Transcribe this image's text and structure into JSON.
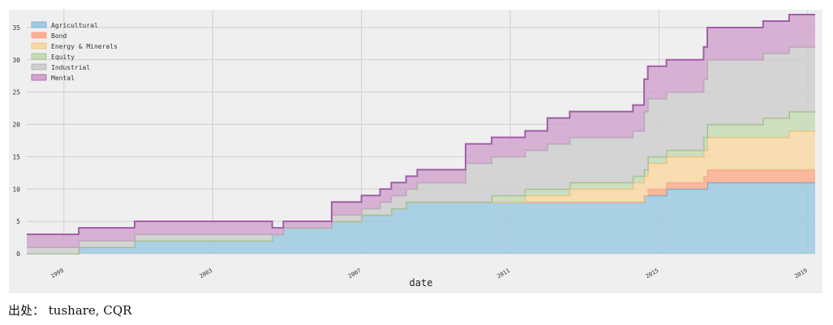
{
  "chart_data": {
    "type": "area",
    "stacked": true,
    "title": "",
    "xlabel": "date",
    "ylabel": "",
    "xlim": [
      1998.0,
      2019.2
    ],
    "ylim": [
      0,
      37
    ],
    "yticks": [
      0,
      5,
      10,
      15,
      20,
      25,
      30,
      35
    ],
    "xticks": [
      1999,
      2003,
      2007,
      2011,
      2015,
      2019
    ],
    "xtick_labels": [
      "1999",
      "2003",
      "2007",
      "2011",
      "2015",
      "2019"
    ],
    "grid": true,
    "legend_position": "top-left",
    "series": [
      {
        "name": "Agricultural",
        "color": "#9ecae1",
        "edge": "#6baed6",
        "points": [
          [
            1998.0,
            0
          ],
          [
            1999.4,
            1
          ],
          [
            2000.9,
            2
          ],
          [
            2004.6,
            3
          ],
          [
            2004.9,
            4
          ],
          [
            2006.2,
            5
          ],
          [
            2007.0,
            6
          ],
          [
            2007.8,
            7
          ],
          [
            2008.2,
            8
          ],
          [
            2014.6,
            9
          ],
          [
            2015.2,
            10
          ],
          [
            2016.3,
            11
          ],
          [
            2019.2,
            11
          ]
        ]
      },
      {
        "name": "Bond",
        "color": "#fcae91",
        "edge": "#f4a582",
        "points": [
          [
            1998.0,
            0
          ],
          [
            2014.7,
            1
          ],
          [
            2016.2,
            2
          ],
          [
            2019.2,
            2
          ]
        ]
      },
      {
        "name": "Energy & Minerals",
        "color": "#f8d9a6",
        "edge": "#f2c078",
        "points": [
          [
            1998.0,
            0
          ],
          [
            2011.4,
            1
          ],
          [
            2012.6,
            2
          ],
          [
            2014.3,
            3
          ],
          [
            2014.7,
            4
          ],
          [
            2016.3,
            5
          ],
          [
            2018.5,
            6
          ],
          [
            2019.2,
            6
          ]
        ]
      },
      {
        "name": "Equity",
        "color": "#c7dcb6",
        "edge": "#9bbf85",
        "points": [
          [
            1998.0,
            0
          ],
          [
            2010.5,
            1
          ],
          [
            2016.2,
            2
          ],
          [
            2017.8,
            3
          ],
          [
            2019.2,
            3
          ]
        ]
      },
      {
        "name": "Industrial",
        "color": "#cfcfcf",
        "edge": "#b0b0b0",
        "points": [
          [
            1998.0,
            1
          ],
          [
            2004.6,
            0
          ],
          [
            2006.2,
            1
          ],
          [
            2007.5,
            2
          ],
          [
            2008.5,
            3
          ],
          [
            2009.8,
            6
          ],
          [
            2012.0,
            7
          ],
          [
            2014.6,
            9
          ],
          [
            2016.3,
            10
          ],
          [
            2019.2,
            10
          ]
        ]
      },
      {
        "name": "Mental",
        "color": "#d2a6cf",
        "edge": "#a05fa8",
        "points": [
          [
            1998.0,
            2
          ],
          [
            1999.4,
            2
          ],
          [
            2000.9,
            2
          ],
          [
            2004.6,
            1
          ],
          [
            2006.2,
            2
          ],
          [
            2009.8,
            3
          ],
          [
            2012.0,
            4
          ],
          [
            2013.0,
            4
          ],
          [
            2014.6,
            5
          ],
          [
            2016.3,
            5
          ],
          [
            2019.2,
            5
          ]
        ]
      }
    ]
  },
  "source_text": "出处： tushare, CQR"
}
